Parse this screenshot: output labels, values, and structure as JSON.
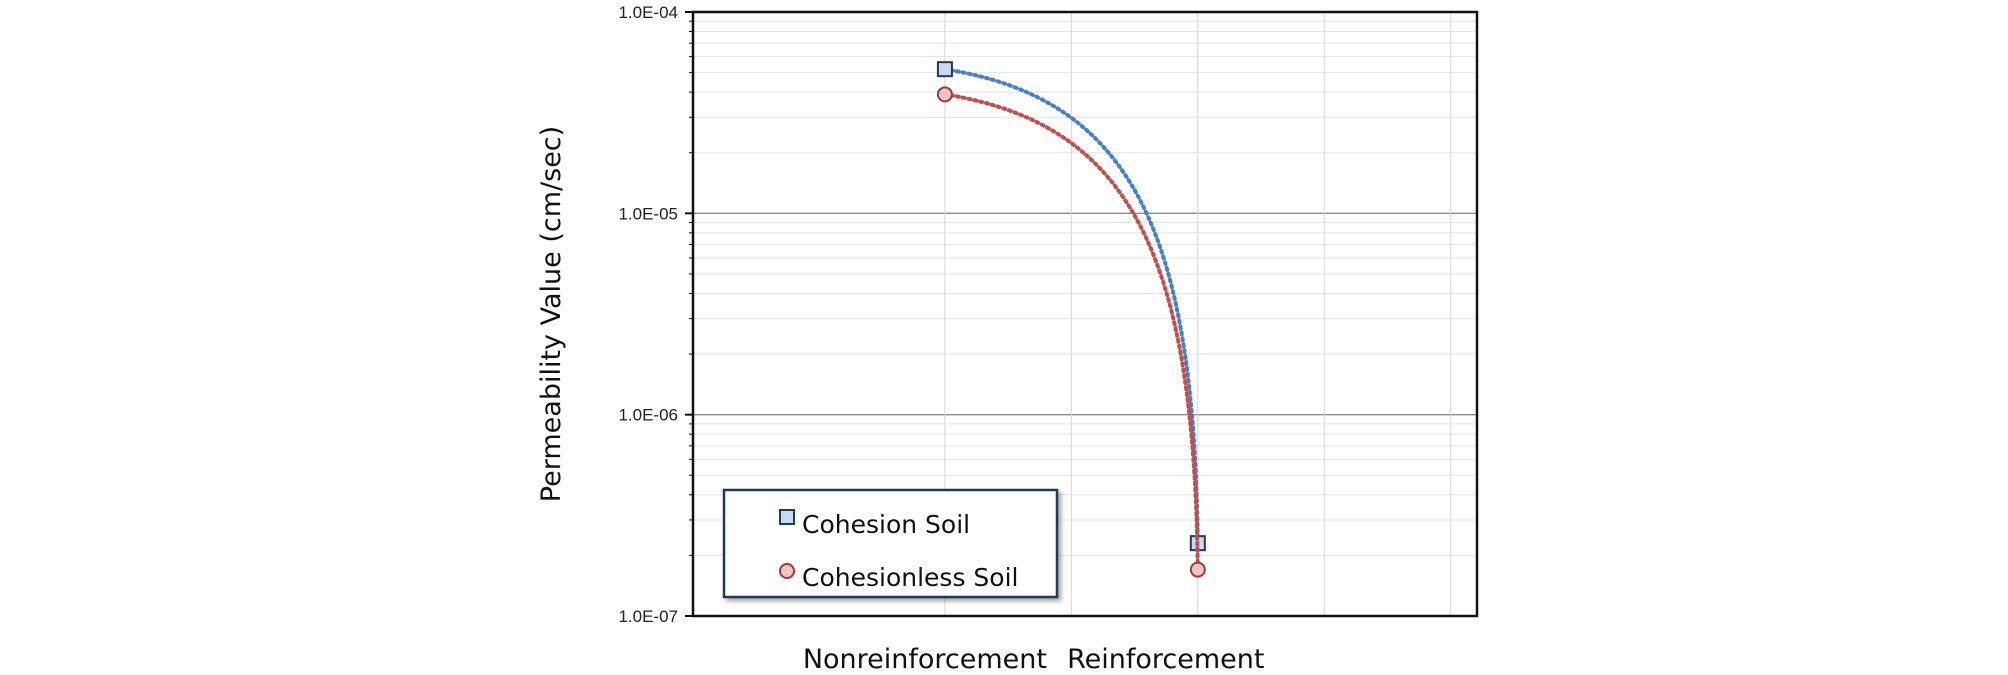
{
  "chart_data": {
    "type": "line",
    "title": "",
    "xlabel": "",
    "ylabel": "Permeability Value (cm/sec)",
    "y_scale": "log",
    "ylim": [
      1e-07,
      0.0001
    ],
    "y_tick_labels": [
      "1.0E-07",
      "1.0E-06",
      "1.0E-05",
      "1.0E-04"
    ],
    "categories": [
      "Nonreinforcement",
      "Reinforcement"
    ],
    "grid": true,
    "legend_position": "bottom-left",
    "series": [
      {
        "name": "Cohesion Soil",
        "values": [
          5.2e-05,
          2.3e-07
        ],
        "color": "#4a7fc1",
        "marker": "square",
        "marker_fill": "#c9d9ee",
        "marker_edge": "#1f3a5a",
        "line_style": "dotted"
      },
      {
        "name": "Cohesionless Soil",
        "values": [
          3.9e-05,
          1.7e-07
        ],
        "color": "#c0504d",
        "marker": "circle",
        "marker_fill": "#f0c4c3",
        "marker_edge": "#9e3b38",
        "line_style": "dotted"
      }
    ]
  }
}
